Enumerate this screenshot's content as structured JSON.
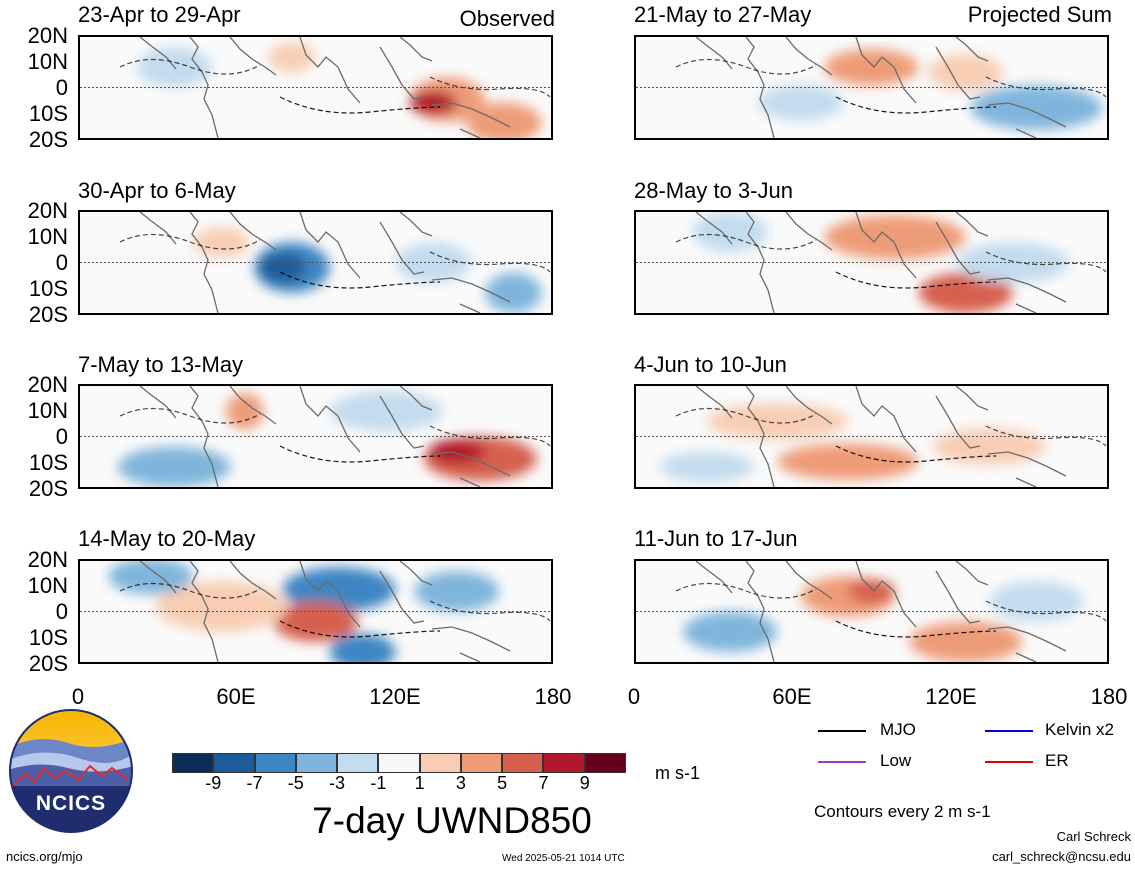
{
  "header": {
    "observed_label": "Observed",
    "projected_label": "Projected Sum"
  },
  "panels_left": [
    {
      "title": "23-Apr to 29-Apr"
    },
    {
      "title": "30-Apr to 6-May"
    },
    {
      "title": "7-May to 13-May"
    },
    {
      "title": "14-May to 20-May"
    }
  ],
  "panels_right": [
    {
      "title": "21-May to 27-May"
    },
    {
      "title": "28-May to 3-Jun"
    },
    {
      "title": "4-Jun to 10-Jun"
    },
    {
      "title": "11-Jun to 17-Jun"
    }
  ],
  "lat_labels": [
    "20N",
    "10N",
    "0",
    "10S",
    "20S"
  ],
  "lon_labels": [
    "0",
    "60E",
    "120E",
    "180"
  ],
  "colorbar": {
    "ticks": [
      "-9",
      "-7",
      "-5",
      "-3",
      "-1",
      "1",
      "3",
      "5",
      "7",
      "9"
    ],
    "colors": [
      "#0b2e59",
      "#1d5c9a",
      "#3d86c3",
      "#7fb5dc",
      "#c3dcee",
      "#f7f7f7",
      "#f8cdb4",
      "#ee9b77",
      "#d6604d",
      "#b2182b",
      "#67001f"
    ],
    "units": "m s-1",
    "title": "7-day UWND850"
  },
  "legend": {
    "items": [
      {
        "label": "MJO",
        "color": "#000000"
      },
      {
        "label": "Kelvin x2",
        "color": "#0000dd"
      },
      {
        "label": "Low",
        "color": "#9a3ad6"
      },
      {
        "label": "ER",
        "color": "#dd0000"
      }
    ],
    "contour_note": "Contours every 2 m s-1"
  },
  "footer": {
    "logo_text": "NCICS",
    "url": "ncics.org/mjo",
    "timestamp": "Wed 2025-05-21 1014 UTC",
    "author": "Carl Schreck",
    "email": "carl_schreck@ncsu.edu"
  },
  "map_fields": [
    {
      "panel": "left-0",
      "blobs": [
        [
          0.78,
          0.62,
          0.08,
          0.22,
          "#ee9b77"
        ],
        [
          0.75,
          0.65,
          0.05,
          0.12,
          "#b2182b"
        ],
        [
          0.2,
          0.3,
          0.08,
          0.2,
          "#c3dcee"
        ],
        [
          0.45,
          0.2,
          0.05,
          0.15,
          "#f8cdb4"
        ],
        [
          0.9,
          0.85,
          0.08,
          0.2,
          "#ee9b77"
        ]
      ]
    },
    {
      "panel": "left-1",
      "blobs": [
        [
          0.45,
          0.55,
          0.08,
          0.25,
          "#3d86c3"
        ],
        [
          0.43,
          0.55,
          0.05,
          0.15,
          "#1d5c9a"
        ],
        [
          0.75,
          0.5,
          0.08,
          0.2,
          "#c3dcee"
        ],
        [
          0.92,
          0.8,
          0.06,
          0.2,
          "#7fb5dc"
        ],
        [
          0.3,
          0.3,
          0.06,
          0.15,
          "#f8cdb4"
        ]
      ]
    },
    {
      "panel": "left-2",
      "blobs": [
        [
          0.35,
          0.25,
          0.04,
          0.18,
          "#ee9b77"
        ],
        [
          0.85,
          0.72,
          0.12,
          0.22,
          "#d6604d"
        ],
        [
          0.8,
          0.65,
          0.06,
          0.12,
          "#b2182b"
        ],
        [
          0.2,
          0.8,
          0.12,
          0.2,
          "#7fb5dc"
        ],
        [
          0.65,
          0.25,
          0.12,
          0.2,
          "#c3dcee"
        ]
      ]
    },
    {
      "panel": "left-3",
      "blobs": [
        [
          0.55,
          0.28,
          0.12,
          0.22,
          "#3d86c3"
        ],
        [
          0.5,
          0.6,
          0.09,
          0.2,
          "#d6604d"
        ],
        [
          0.3,
          0.45,
          0.14,
          0.25,
          "#f8cdb4"
        ],
        [
          0.6,
          0.9,
          0.07,
          0.18,
          "#3d86c3"
        ],
        [
          0.8,
          0.3,
          0.09,
          0.2,
          "#7fb5dc"
        ],
        [
          0.15,
          0.15,
          0.09,
          0.18,
          "#7fb5dc"
        ]
      ]
    },
    {
      "panel": "right-0",
      "blobs": [
        [
          0.5,
          0.3,
          0.1,
          0.18,
          "#ee9b77"
        ],
        [
          0.85,
          0.7,
          0.14,
          0.22,
          "#7fb5dc"
        ],
        [
          0.35,
          0.65,
          0.09,
          0.18,
          "#c3dcee"
        ],
        [
          0.7,
          0.35,
          0.08,
          0.18,
          "#f8cdb4"
        ]
      ]
    },
    {
      "panel": "right-1",
      "blobs": [
        [
          0.55,
          0.25,
          0.15,
          0.22,
          "#ee9b77"
        ],
        [
          0.7,
          0.8,
          0.1,
          0.2,
          "#d6604d"
        ],
        [
          0.8,
          0.5,
          0.12,
          0.2,
          "#c3dcee"
        ],
        [
          0.2,
          0.2,
          0.08,
          0.2,
          "#c3dcee"
        ]
      ]
    },
    {
      "panel": "right-2",
      "blobs": [
        [
          0.45,
          0.75,
          0.15,
          0.18,
          "#ee9b77"
        ],
        [
          0.3,
          0.35,
          0.15,
          0.18,
          "#f8cdb4"
        ],
        [
          0.75,
          0.6,
          0.12,
          0.18,
          "#f8cdb4"
        ],
        [
          0.15,
          0.8,
          0.1,
          0.15,
          "#c3dcee"
        ]
      ]
    },
    {
      "panel": "right-3",
      "blobs": [
        [
          0.45,
          0.35,
          0.1,
          0.2,
          "#ee9b77"
        ],
        [
          0.5,
          0.3,
          0.05,
          0.12,
          "#d6604d"
        ],
        [
          0.7,
          0.8,
          0.12,
          0.2,
          "#ee9b77"
        ],
        [
          0.2,
          0.7,
          0.1,
          0.2,
          "#7fb5dc"
        ],
        [
          0.85,
          0.4,
          0.1,
          0.2,
          "#c3dcee"
        ]
      ]
    }
  ]
}
